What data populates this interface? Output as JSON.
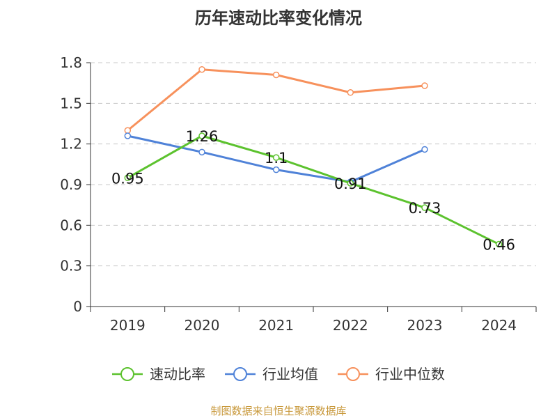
{
  "chart_data": {
    "type": "line",
    "title": "历年速动比率变化情况",
    "categories": [
      "2019",
      "2020",
      "2021",
      "2022",
      "2023",
      "2024"
    ],
    "ylim": [
      0,
      1.8
    ],
    "yticks": [
      "0",
      "0.3",
      "0.6",
      "0.9",
      "1.2",
      "1.5",
      "1.8"
    ],
    "grid": true,
    "legend_position": "bottom",
    "series": [
      {
        "name": "速动比率",
        "color": "#5cc22e",
        "values": [
          0.95,
          1.26,
          1.1,
          0.91,
          0.73,
          0.46
        ],
        "labels": [
          "0.95",
          "1.26",
          "1.1",
          "0.91",
          "0.73",
          "0.46"
        ]
      },
      {
        "name": "行业均值",
        "color": "#4f82d8",
        "values": [
          1.26,
          1.14,
          1.01,
          0.92,
          1.16,
          null
        ]
      },
      {
        "name": "行业中位数",
        "color": "#f7915c",
        "values": [
          1.3,
          1.75,
          1.71,
          1.58,
          1.63,
          null
        ]
      }
    ],
    "source": "制图数据来自恒生聚源数据库"
  }
}
